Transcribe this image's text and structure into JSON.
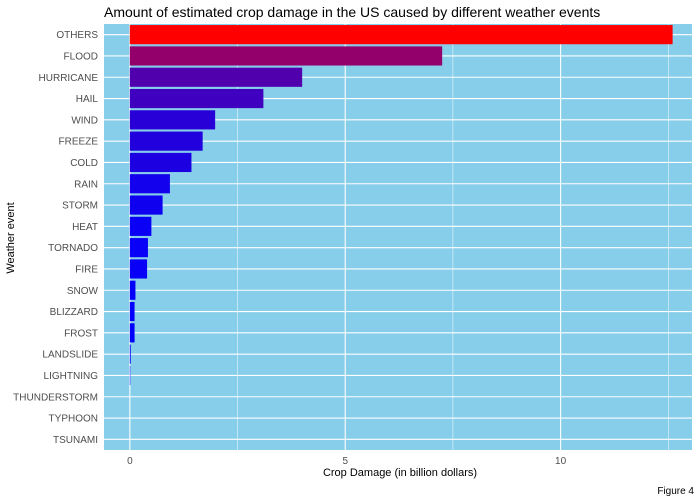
{
  "chart_data": {
    "type": "bar",
    "orientation": "horizontal",
    "title": "Amount of estimated crop damage in the US caused by different weather events",
    "xlabel": "Crop Damage (in billion dollars)",
    "ylabel": "Weather event",
    "caption": "Figure 4",
    "xlim": [
      -0.6,
      13.05
    ],
    "xticks": [
      0,
      5,
      10
    ],
    "grid": true,
    "legend": "none",
    "categories": [
      "OTHERS",
      "FLOOD",
      "HURRICANE",
      "HAIL",
      "WIND",
      "FREEZE",
      "COLD",
      "RAIN",
      "STORM",
      "HEAT",
      "TORNADO",
      "FIRE",
      "SNOW",
      "BLIZZARD",
      "FROST",
      "LANDSLIDE",
      "LIGHTNING",
      "THUNDERSTORM",
      "TYPHOON",
      "TSUNAMI"
    ],
    "values": [
      12.6,
      7.25,
      4.0,
      3.1,
      1.98,
      1.69,
      1.43,
      0.93,
      0.76,
      0.5,
      0.42,
      0.4,
      0.13,
      0.11,
      0.11,
      0.02,
      0.01,
      0.0,
      0.0,
      0.0
    ],
    "colors": {
      "panel_background": "#87ceeb",
      "grid": "#ffffff",
      "bar_low": "#0000ff",
      "bar_high": "#ff0000"
    }
  }
}
